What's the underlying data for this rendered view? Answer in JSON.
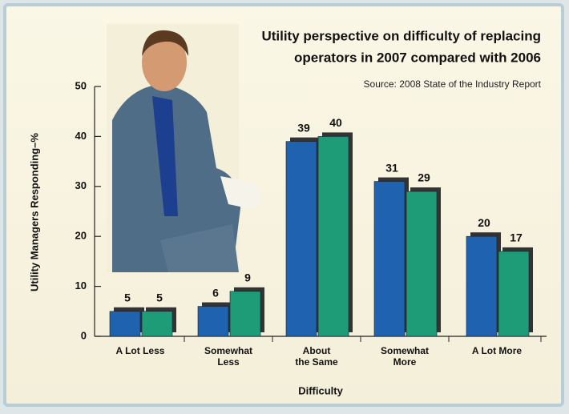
{
  "chart_data": {
    "type": "bar",
    "title": [
      "Utility perspective on difficulty of replacing",
      "operators in 2007 compared with 2006"
    ],
    "subtitle": "Source: 2008 State of the Industry Report",
    "x_label": "Difficulty",
    "y_label": "Utility Managers Responding–%",
    "categories": [
      [
        "A Lot Less"
      ],
      [
        "Somewhat",
        "Less"
      ],
      [
        "About",
        "the Same"
      ],
      [
        "Somewhat",
        "More"
      ],
      [
        "A Lot More"
      ]
    ],
    "series": [
      {
        "color": "#1f63b0",
        "values": [
          5,
          6,
          39,
          31,
          20
        ]
      },
      {
        "color": "#1e9c78",
        "values": [
          5,
          9,
          40,
          29,
          17
        ]
      }
    ],
    "ylim": [
      0,
      50
    ],
    "yticks": [
      0,
      10,
      20,
      30,
      40,
      50
    ]
  }
}
